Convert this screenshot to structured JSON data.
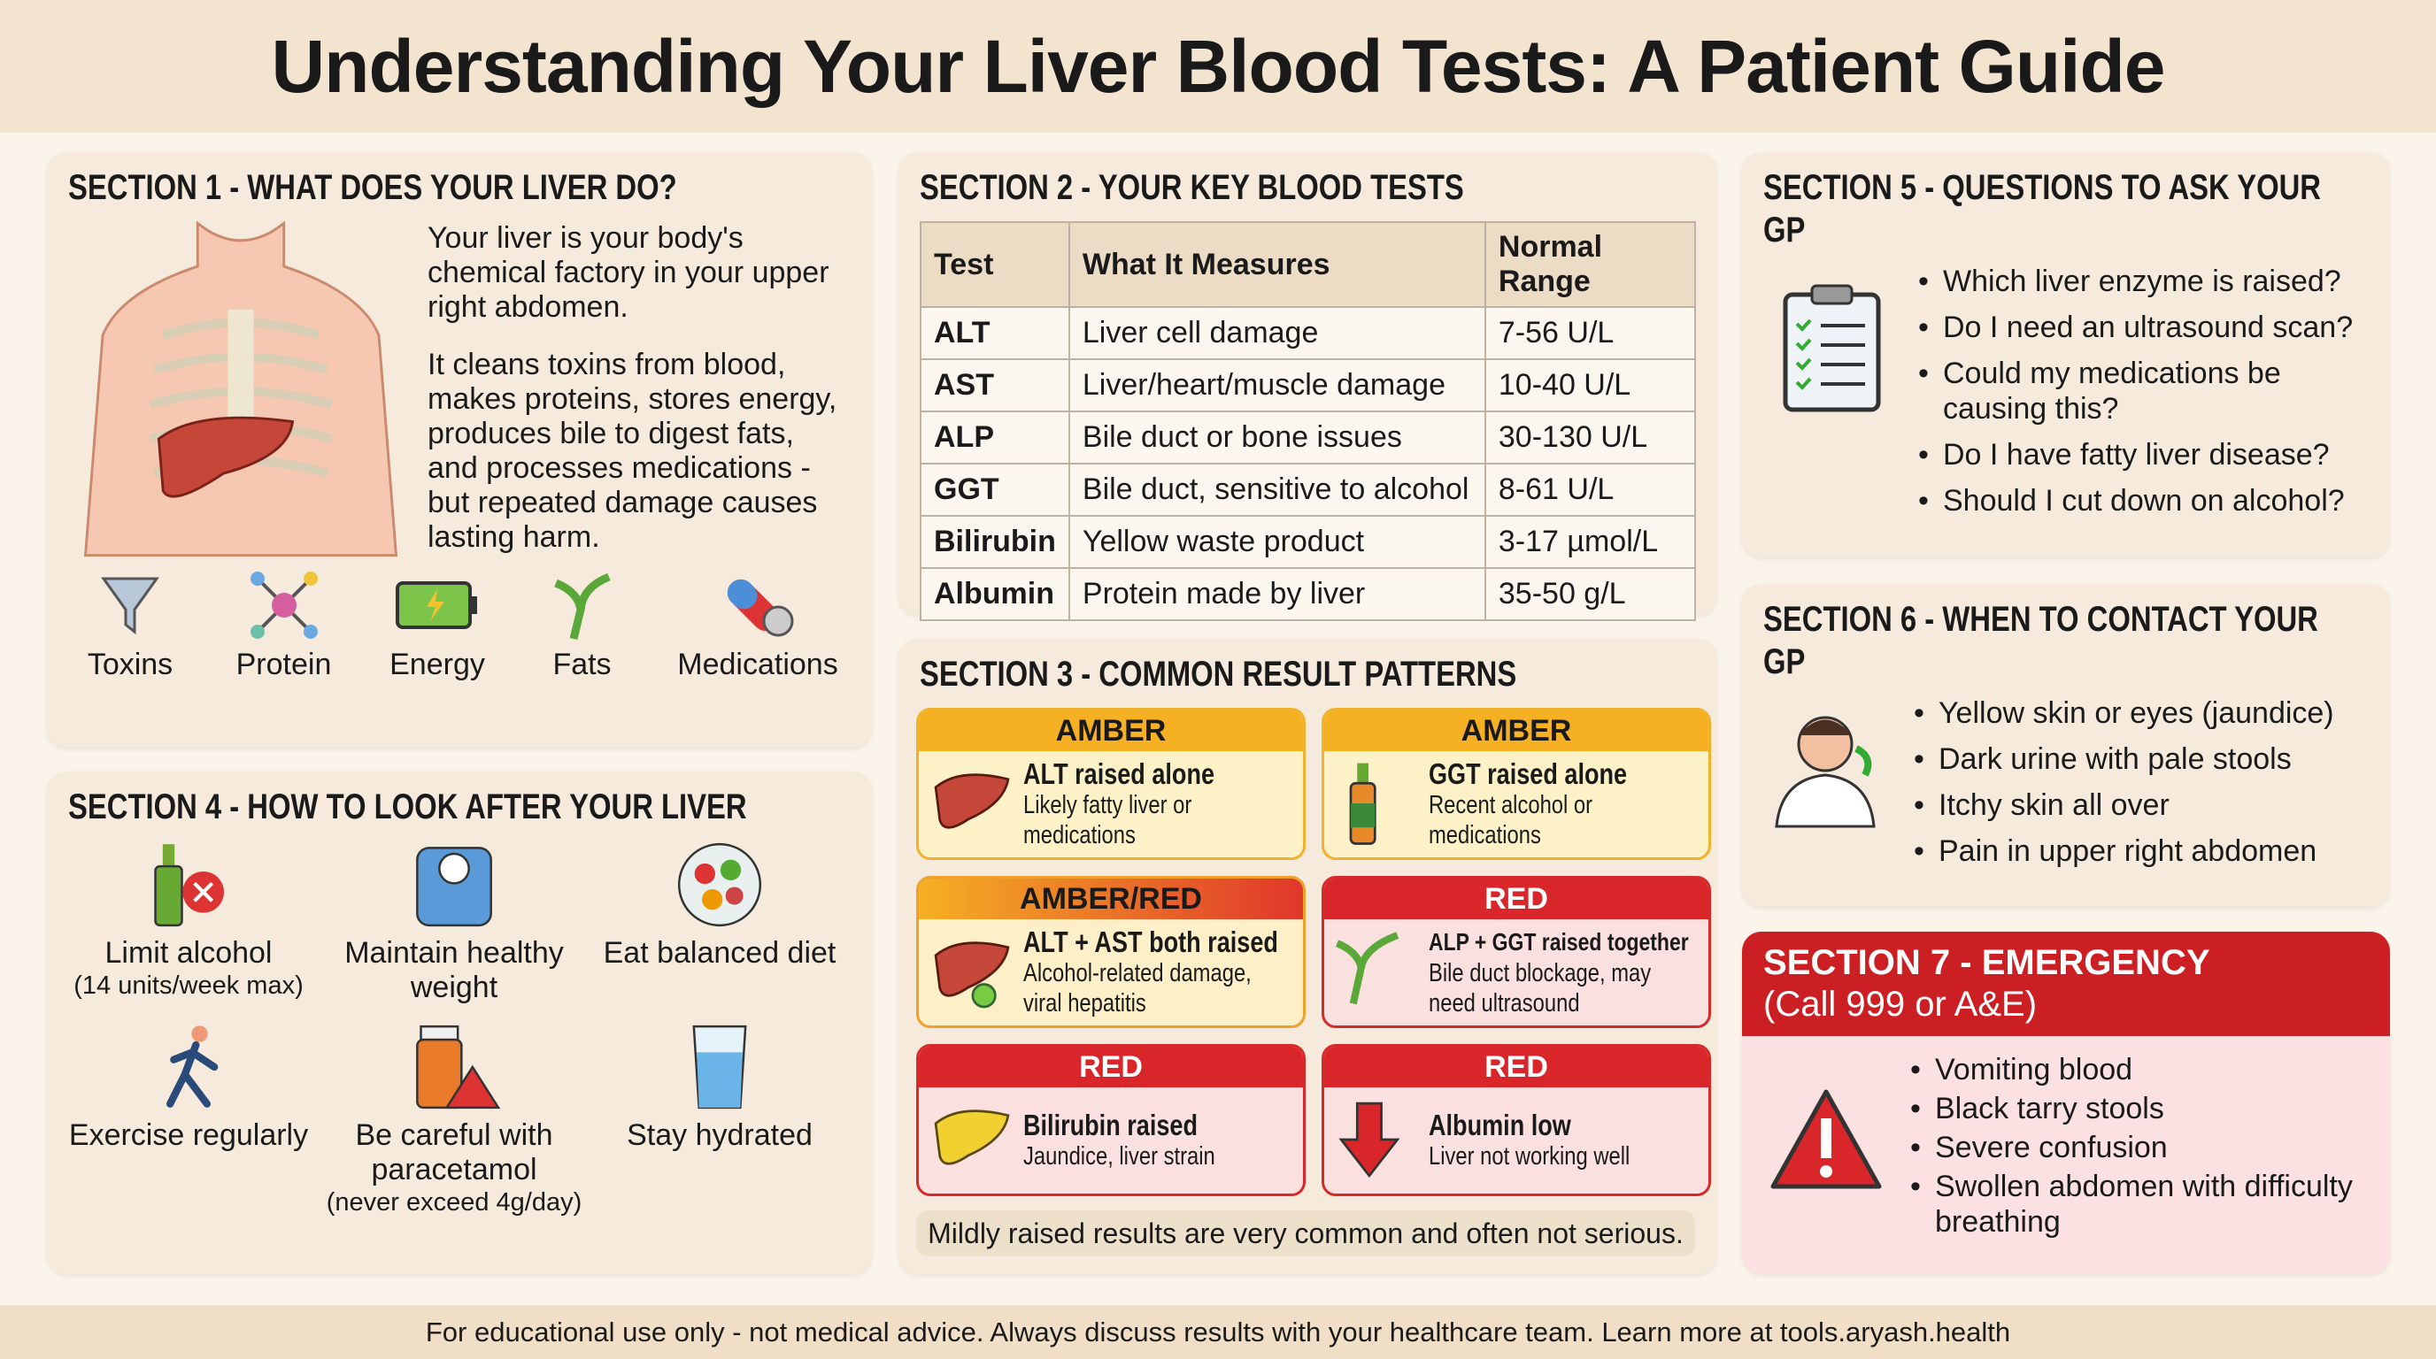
{
  "title": "Understanding Your Liver Blood Tests: A Patient Guide",
  "s1": {
    "heading": "SECTION 1 - WHAT DOES YOUR LIVER DO?",
    "p1": "Your liver is your body's chemical factory in your upper right abdomen.",
    "p2": "It cleans toxins from blood, makes proteins, stores energy, produces bile to digest fats, and processes medications - but repeated damage causes lasting harm.",
    "icons": [
      {
        "label": "Toxins",
        "icon": "funnel-icon"
      },
      {
        "label": "Protein",
        "icon": "molecule-icon"
      },
      {
        "label": "Energy",
        "icon": "battery-icon"
      },
      {
        "label": "Fats",
        "icon": "bile-duct-icon"
      },
      {
        "label": "Medications",
        "icon": "pill-icon"
      }
    ]
  },
  "s2": {
    "heading": "SECTION 2 - YOUR KEY BLOOD TESTS",
    "headers": [
      "Test",
      "What It Measures",
      "Normal Range"
    ],
    "rows": [
      [
        "ALT",
        "Liver cell damage",
        "7-56 U/L"
      ],
      [
        "AST",
        "Liver/heart/muscle damage",
        "10-40 U/L"
      ],
      [
        "ALP",
        "Bile duct or bone issues",
        "30-130 U/L"
      ],
      [
        "GGT",
        "Bile duct, sensitive to alcohol",
        "8-61 U/L"
      ],
      [
        "Bilirubin",
        "Yellow waste product",
        "3-17 µmol/L"
      ],
      [
        "Albumin",
        "Protein made by liver",
        "35-50 g/L"
      ]
    ]
  },
  "s3": {
    "heading": "SECTION 3 - COMMON RESULT PATTERNS",
    "patterns": [
      {
        "level": "AMBER",
        "title": "ALT raised alone",
        "desc": "Likely fatty liver or medications"
      },
      {
        "level": "AMBER",
        "title": "GGT raised alone",
        "desc": "Recent alcohol or medications"
      },
      {
        "level": "AMBER/RED",
        "title": "ALT + AST both raised",
        "desc": "Alcohol-related damage, viral hepatitis"
      },
      {
        "level": "RED",
        "title": "ALP + GGT raised together",
        "desc": "Bile duct blockage, may need ultrasound"
      },
      {
        "level": "RED",
        "title": "Bilirubin raised",
        "desc": "Jaundice, liver strain"
      },
      {
        "level": "RED",
        "title": "Albumin low",
        "desc": "Liver not working well"
      }
    ],
    "note": "Mildly raised results are very common and often not serious."
  },
  "s4": {
    "heading": "SECTION 4 - HOW TO LOOK AFTER YOUR LIVER",
    "items": [
      {
        "label": "Limit alcohol",
        "sub": "(14 units/week max)"
      },
      {
        "label": "Maintain healthy weight",
        "sub": ""
      },
      {
        "label": "Eat balanced diet",
        "sub": ""
      },
      {
        "label": "Exercise regularly",
        "sub": ""
      },
      {
        "label": "Be careful with paracetamol",
        "sub": "(never exceed 4g/day)"
      },
      {
        "label": "Stay hydrated",
        "sub": ""
      }
    ]
  },
  "s5": {
    "heading": "SECTION 5 - QUESTIONS TO ASK YOUR GP",
    "items": [
      "Which liver enzyme is raised?",
      "Do I need an ultrasound scan?",
      "Could my medications be causing this?",
      "Do I have fatty liver disease?",
      "Should I cut down on alcohol?"
    ]
  },
  "s6": {
    "heading": "SECTION 6 - WHEN TO CONTACT YOUR GP",
    "items": [
      "Yellow skin or eyes (jaundice)",
      "Dark urine with pale stools",
      "Itchy skin all over",
      "Pain in upper right abdomen"
    ]
  },
  "s7": {
    "heading": "SECTION 7 - EMERGENCY",
    "sub": "(Call 999 or A&E)",
    "items": [
      "Vomiting blood",
      "Black tarry stools",
      "Severe confusion",
      "Swollen abdomen with difficulty breathing"
    ]
  },
  "footer": "For educational use only - not medical advice. Always discuss results with your healthcare team. Learn more at tools.aryash.health",
  "colors": {
    "amber": "#f5b024",
    "red": "#d9262a",
    "background": "#fbf4ea"
  }
}
